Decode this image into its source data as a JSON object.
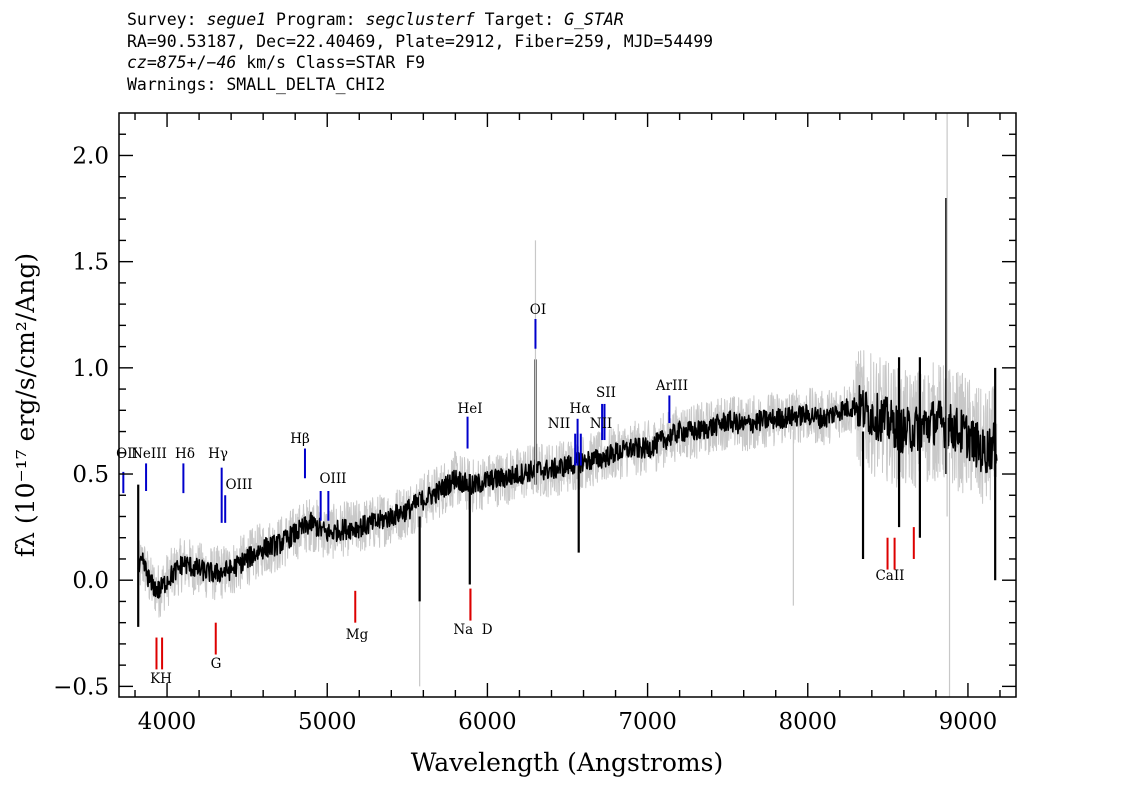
{
  "header": {
    "line1": {
      "survey_label": "Survey: ",
      "survey": "segue1",
      "program_label": " Program: ",
      "program": "segclusterf",
      "target_label": " Target: ",
      "target": "G_STAR"
    },
    "line2": "RA=90.53187, Dec=22.40469, Plate=2912, Fiber=259, MJD=54499",
    "line3": {
      "cz_label": "cz=",
      "cz": "875",
      "pm": "+/−",
      "err": "46",
      "rest": " km/s Class=STAR F9"
    },
    "line4": "Warnings: SMALL_DELTA_CHI2"
  },
  "chart_data": {
    "type": "line",
    "title": "",
    "xlabel": "Wavelength (Angstroms)",
    "ylabel": "fλ (10⁻¹⁷ erg/s/cm²/Ang)",
    "xlim": [
      3700,
      9300
    ],
    "ylim": [
      -0.55,
      2.2
    ],
    "xticks": [
      4000,
      5000,
      6000,
      7000,
      8000,
      9000
    ],
    "xtick_labels": [
      "4000",
      "5000",
      "6000",
      "7000",
      "8000",
      "9000"
    ],
    "yticks": [
      -0.5,
      0.0,
      0.5,
      1.0,
      1.5,
      2.0
    ],
    "ytick_labels": [
      "−0.5",
      "0.0",
      "0.5",
      "1.0",
      "1.5",
      "2.0"
    ],
    "grid": false,
    "series": [
      {
        "color": "#c8c8c8",
        "band": 0.13,
        "x": [
          3820,
          3850,
          3900,
          3950,
          4000,
          4100,
          4200,
          4300,
          4400,
          4500,
          4600,
          4700,
          4800,
          4900,
          5000,
          5100,
          5200,
          5300,
          5400,
          5500,
          5600,
          5700,
          5800,
          5900,
          6000,
          6100,
          6200,
          6300,
          6400,
          6500,
          6600,
          6700,
          6800,
          6900,
          7000,
          7100,
          7200,
          7300,
          7400,
          7500,
          7600,
          7700,
          7800,
          7900,
          8000,
          8100,
          8200,
          8300,
          8400,
          8500,
          8600,
          8700,
          8800,
          8900,
          9000,
          9100,
          9180
        ],
        "y": [
          0.05,
          0.08,
          -0.02,
          -0.05,
          0.0,
          0.08,
          0.05,
          0.03,
          0.05,
          0.1,
          0.15,
          0.17,
          0.22,
          0.27,
          0.22,
          0.24,
          0.25,
          0.27,
          0.3,
          0.33,
          0.38,
          0.42,
          0.48,
          0.44,
          0.47,
          0.48,
          0.5,
          0.52,
          0.52,
          0.54,
          0.56,
          0.57,
          0.6,
          0.62,
          0.62,
          0.66,
          0.7,
          0.7,
          0.72,
          0.75,
          0.73,
          0.75,
          0.76,
          0.77,
          0.78,
          0.76,
          0.8,
          0.82,
          0.78,
          0.75,
          0.7,
          0.72,
          0.75,
          0.72,
          0.68,
          0.6,
          0.65
        ]
      },
      {
        "color": "#000000",
        "band": 0.05,
        "x": [
          3820,
          3850,
          3900,
          3950,
          4000,
          4100,
          4200,
          4300,
          4400,
          4500,
          4600,
          4700,
          4800,
          4900,
          5000,
          5100,
          5200,
          5300,
          5400,
          5500,
          5600,
          5700,
          5800,
          5900,
          6000,
          6100,
          6200,
          6300,
          6400,
          6500,
          6600,
          6700,
          6800,
          6900,
          7000,
          7100,
          7200,
          7300,
          7400,
          7500,
          7600,
          7700,
          7800,
          7900,
          8000,
          8100,
          8200,
          8300,
          8400,
          8500,
          8600,
          8700,
          8800,
          8900,
          9000,
          9100,
          9180
        ],
        "y": [
          0.05,
          0.08,
          -0.02,
          -0.05,
          0.0,
          0.08,
          0.05,
          0.03,
          0.05,
          0.1,
          0.15,
          0.17,
          0.22,
          0.27,
          0.22,
          0.24,
          0.25,
          0.27,
          0.3,
          0.33,
          0.38,
          0.42,
          0.48,
          0.44,
          0.47,
          0.48,
          0.5,
          0.52,
          0.52,
          0.54,
          0.56,
          0.57,
          0.6,
          0.62,
          0.62,
          0.66,
          0.7,
          0.7,
          0.72,
          0.75,
          0.73,
          0.75,
          0.76,
          0.77,
          0.78,
          0.76,
          0.8,
          0.82,
          0.78,
          0.75,
          0.7,
          0.72,
          0.75,
          0.72,
          0.68,
          0.6,
          0.65
        ]
      }
    ],
    "spikes": [
      {
        "x": 6300,
        "y0": 0.45,
        "y1": 1.04,
        "color": "#000000"
      },
      {
        "x": 6300,
        "y0": 0.45,
        "y1": 1.6,
        "color": "#c8c8c8"
      },
      {
        "x": 8865,
        "y0": 0.5,
        "y1": 1.8,
        "color": "#000000"
      },
      {
        "x": 8870,
        "y0": 0.3,
        "y1": 2.2,
        "color": "#c8c8c8"
      },
      {
        "x": 5890,
        "y0": -0.02,
        "y1": 0.5,
        "color": "#000000"
      },
      {
        "x": 5577,
        "y0": -0.5,
        "y1": 0.4,
        "color": "#c8c8c8"
      },
      {
        "x": 5577,
        "y0": -0.1,
        "y1": 0.3,
        "color": "#000000"
      },
      {
        "x": 8885,
        "y0": -0.55,
        "y1": 0.6,
        "color": "#c8c8c8"
      },
      {
        "x": 8345,
        "y0": 0.1,
        "y1": 0.7,
        "color": "#000000"
      },
      {
        "x": 7910,
        "y0": -0.12,
        "y1": 0.7,
        "color": "#c8c8c8"
      },
      {
        "x": 9170,
        "y0": 0.0,
        "y1": 1.0,
        "color": "#000000"
      },
      {
        "x": 3820,
        "y0": -0.22,
        "y1": 0.45,
        "color": "#000000"
      },
      {
        "x": 6570,
        "y0": 0.13,
        "y1": 0.6,
        "color": "#000000"
      },
      {
        "x": 8570,
        "y0": 0.25,
        "y1": 1.05,
        "color": "#000000"
      },
      {
        "x": 8700,
        "y0": 0.2,
        "y1": 1.05,
        "color": "#000000"
      }
    ],
    "emission_lines": [
      {
        "label": "OII",
        "x": 3727,
        "y0": 0.41,
        "y1": 0.51
      },
      {
        "label": "NeIII",
        "x": 3869,
        "y0": 0.42,
        "y1": 0.55
      },
      {
        "label": "Hδ",
        "x": 4102,
        "y0": 0.41,
        "y1": 0.55
      },
      {
        "label": "Hγ",
        "x": 4341,
        "y0": 0.27,
        "y1": 0.53
      },
      {
        "label": "OIII",
        "x": 4363,
        "y0": 0.27,
        "y1": 0.4
      },
      {
        "label": "Hβ",
        "x": 4861,
        "y0": 0.48,
        "y1": 0.62
      },
      {
        "label": "OIII",
        "x": 4959,
        "y0": 0.28,
        "y1": 0.42
      },
      {
        "label": "OIII",
        "x": 5007,
        "y0": 0.28,
        "y1": 0.42
      },
      {
        "label": "HeI",
        "x": 5876,
        "y0": 0.62,
        "y1": 0.77
      },
      {
        "label": "OI",
        "x": 6300,
        "y0": 1.09,
        "y1": 1.23
      },
      {
        "label": "NII",
        "x": 6548,
        "y0": 0.54,
        "y1": 0.69
      },
      {
        "label": "Hα",
        "x": 6563,
        "y0": 0.54,
        "y1": 0.76
      },
      {
        "label": "NII",
        "x": 6583,
        "y0": 0.54,
        "y1": 0.69
      },
      {
        "label": "SII",
        "x": 6716,
        "y0": 0.66,
        "y1": 0.83
      },
      {
        "label": "SII",
        "x": 6731,
        "y0": 0.66,
        "y1": 0.83
      },
      {
        "label": "ArIII",
        "x": 7136,
        "y0": 0.74,
        "y1": 0.87
      }
    ],
    "absorption_lines": [
      {
        "label": "K",
        "x": 3934,
        "y0": -0.27,
        "y1": -0.42
      },
      {
        "label": "H",
        "x": 3969,
        "y0": -0.27,
        "y1": -0.42
      },
      {
        "label": "G",
        "x": 4304,
        "y0": -0.2,
        "y1": -0.35
      },
      {
        "label": "Mg",
        "x": 5175,
        "y0": -0.05,
        "y1": -0.2
      },
      {
        "label": "Na",
        "x": 5894,
        "y0": -0.04,
        "y1": -0.19
      },
      {
        "label": "D",
        "x": 5894,
        "y0": -0.04,
        "y1": -0.19
      },
      {
        "label": "CaII",
        "x": 8498,
        "y0": 0.2,
        "y1": 0.05
      },
      {
        "label": "CaII",
        "x": 8542,
        "y0": 0.2,
        "y1": 0.05
      },
      {
        "label": "CaII",
        "x": 8662,
        "y0": 0.25,
        "y1": 0.1
      }
    ],
    "line_label_texts": {
      "emission": [
        "OII",
        "NeIII",
        "Hδ",
        "Hγ",
        "OIII",
        "Hβ",
        "OIII",
        "HeI",
        "OI",
        "NII",
        "Hα",
        "NII",
        "SII",
        "ArIII"
      ],
      "absorption": [
        "KH",
        "G",
        "Mg",
        "Na  D",
        "CaII"
      ]
    },
    "colors": {
      "spectrum": "#000000",
      "model": "#c8c8c8",
      "emission": "#0000cc",
      "absorption": "#dd0000"
    }
  }
}
